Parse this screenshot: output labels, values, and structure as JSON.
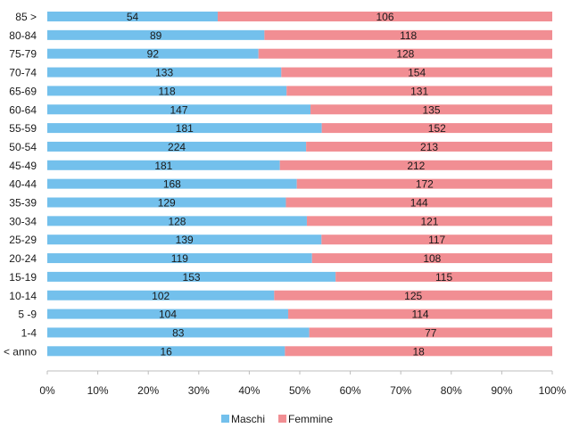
{
  "chart_data": {
    "type": "bar",
    "orientation": "horizontal",
    "stacked": "percent",
    "categories": [
      "85 >",
      "80-84",
      "75-79",
      "70-74",
      "65-69",
      "60-64",
      "55-59",
      "50-54",
      "45-49",
      "40-44",
      "35-39",
      "30-34",
      "25-29",
      "20-24",
      "15-19",
      "10-14",
      "5 -9",
      "1-4",
      "< anno"
    ],
    "series": [
      {
        "name": "Maschi",
        "color": "#73c0ec",
        "values": [
          54,
          89,
          92,
          133,
          118,
          147,
          181,
          224,
          181,
          168,
          129,
          128,
          139,
          119,
          153,
          102,
          104,
          83,
          16
        ]
      },
      {
        "name": "Femmine",
        "color": "#f18e93",
        "values": [
          106,
          118,
          128,
          154,
          131,
          135,
          152,
          213,
          212,
          172,
          144,
          121,
          117,
          108,
          115,
          125,
          114,
          77,
          18
        ]
      }
    ],
    "xticks": [
      "0%",
      "10%",
      "20%",
      "30%",
      "40%",
      "50%",
      "60%",
      "70%",
      "80%",
      "90%",
      "100%"
    ],
    "xlim": [
      0,
      100
    ],
    "grid": false,
    "legend_position": "bottom"
  }
}
